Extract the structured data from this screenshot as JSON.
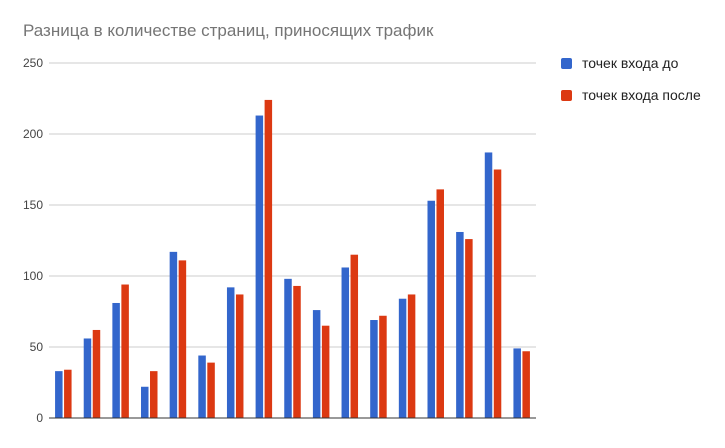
{
  "chart_data": {
    "type": "bar",
    "title": "Разница в количестве страниц, приносящих трафик",
    "xlabel": "",
    "ylabel": "",
    "ylim": [
      0,
      250
    ],
    "yticks": [
      "0",
      "50",
      "100",
      "150",
      "200",
      "250"
    ],
    "grid": true,
    "legend_position": "right",
    "categories": [
      "",
      "",
      "",
      "",
      "",
      "",
      "",
      "",
      "",
      "",
      "",
      "",
      "",
      "",
      "",
      "",
      ""
    ],
    "series": [
      {
        "name": "точек входа до",
        "color": "#3366cc",
        "values": [
          33,
          56,
          81,
          22,
          117,
          44,
          92,
          213,
          98,
          76,
          106,
          69,
          84,
          153,
          131,
          187,
          49
        ]
      },
      {
        "name": "точек входа после",
        "color": "#dc3912",
        "values": [
          34,
          62,
          94,
          33,
          111,
          39,
          87,
          224,
          93,
          65,
          115,
          72,
          87,
          161,
          126,
          175,
          47
        ]
      }
    ]
  }
}
